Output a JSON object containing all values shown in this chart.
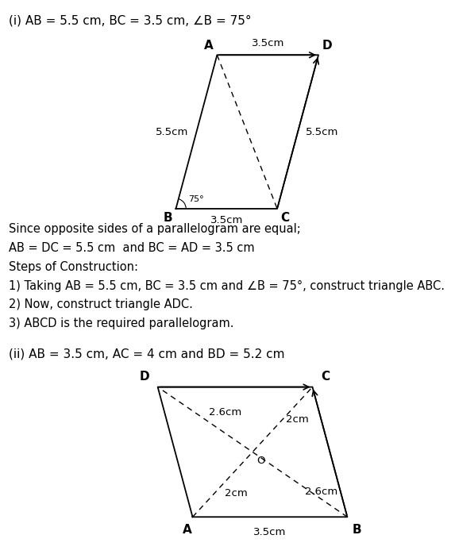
{
  "bg_color": "#ffffff",
  "title_i": "(i) AB = 5.5 cm, BC = 3.5 cm, ∠B = 75°",
  "title_ii": "(ii) AB = 3.5 cm, AC = 4 cm and BD = 5.2 cm",
  "text_lines": [
    "Since opposite sides of a parallelogram are equal;",
    "AB = DC = 5.5 cm  and BC = AD = 3.5 cm",
    "Steps of Construction:",
    "1) Taking AB = 5.5 cm, BC = 3.5 cm and ∠B = 75°, construct triangle ABC.",
    "2) Now, construct triangle ADC.",
    "3) ABCD is the required parallelogram."
  ],
  "font_size_title": 11,
  "font_size_text": 10.5,
  "font_size_label": 11,
  "font_size_annot": 9.5
}
